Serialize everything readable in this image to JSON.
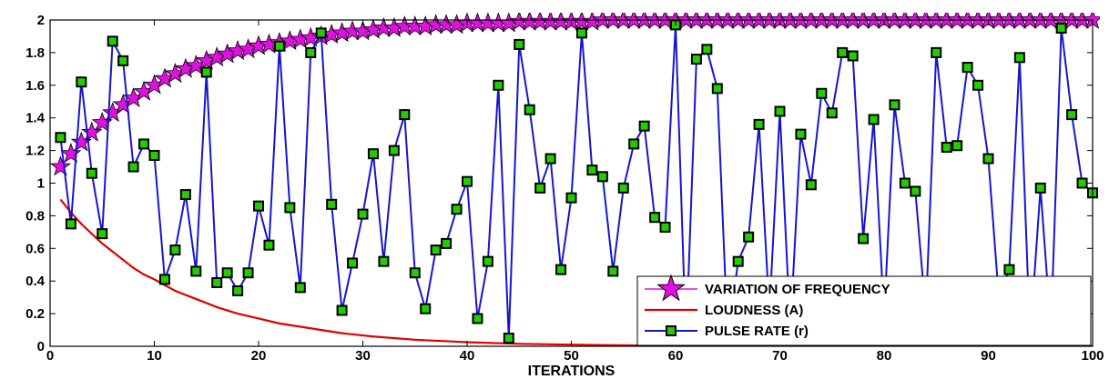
{
  "chart_data": {
    "type": "line",
    "xlabel": "ITERATIONS",
    "ylabel": "",
    "xlim": [
      0,
      100
    ],
    "ylim": [
      0,
      2
    ],
    "xticks": [
      0,
      10,
      20,
      30,
      40,
      50,
      60,
      70,
      80,
      90,
      100
    ],
    "yticks": [
      0,
      0.2,
      0.4,
      0.6,
      0.8,
      1,
      1.2,
      1.4,
      1.6,
      1.8,
      2
    ],
    "grid": false,
    "legend_position": "bottom-right",
    "series": [
      {
        "name": "VARIATION OF FREQUENCY",
        "color": "#e010e0",
        "edge_color": "#000000",
        "marker": "star",
        "line": true,
        "x": [
          1,
          2,
          3,
          4,
          5,
          6,
          7,
          8,
          9,
          10,
          11,
          12,
          13,
          14,
          15,
          16,
          17,
          18,
          19,
          20,
          21,
          22,
          23,
          24,
          25,
          26,
          27,
          28,
          29,
          30,
          31,
          32,
          33,
          34,
          35,
          36,
          37,
          38,
          39,
          40,
          41,
          42,
          43,
          44,
          45,
          46,
          47,
          48,
          49,
          50,
          51,
          52,
          53,
          54,
          55,
          56,
          57,
          58,
          59,
          60,
          61,
          62,
          63,
          64,
          65,
          66,
          67,
          68,
          69,
          70,
          71,
          72,
          73,
          74,
          75,
          76,
          77,
          78,
          79,
          80,
          81,
          82,
          83,
          84,
          85,
          86,
          87,
          88,
          89,
          90,
          91,
          92,
          93,
          94,
          95,
          96,
          97,
          98,
          99,
          100
        ],
        "values": [
          1.1,
          1.18,
          1.25,
          1.31,
          1.37,
          1.43,
          1.48,
          1.52,
          1.56,
          1.6,
          1.64,
          1.67,
          1.7,
          1.72,
          1.75,
          1.77,
          1.79,
          1.81,
          1.82,
          1.84,
          1.85,
          1.86,
          1.87,
          1.88,
          1.89,
          1.9,
          1.91,
          1.92,
          1.93,
          1.93,
          1.94,
          1.95,
          1.95,
          1.96,
          1.96,
          1.96,
          1.97,
          1.97,
          1.97,
          1.98,
          1.98,
          1.98,
          1.98,
          1.98,
          1.99,
          1.99,
          1.99,
          1.99,
          1.99,
          1.99,
          1.99,
          1.99,
          2.0,
          2.0,
          2.0,
          2.0,
          2.0,
          2.0,
          2.0,
          2.0,
          2.0,
          2.0,
          2.0,
          2.0,
          2.0,
          2.0,
          2.0,
          2.0,
          2.0,
          2.0,
          2.0,
          2.0,
          2.0,
          2.0,
          2.0,
          2.0,
          2.0,
          2.0,
          2.0,
          2.0,
          2.0,
          2.0,
          2.0,
          2.0,
          2.0,
          2.0,
          2.0,
          2.0,
          2.0,
          2.0,
          2.0,
          2.0,
          2.0,
          2.0,
          2.0,
          2.0,
          2.0,
          2.0,
          2.0,
          2.0
        ]
      },
      {
        "name": "LOUDNESS (A)",
        "color": "#e00000",
        "marker": "none",
        "line": true,
        "x": [
          1,
          2,
          3,
          4,
          5,
          6,
          7,
          8,
          9,
          10,
          12,
          14,
          16,
          18,
          20,
          22,
          25,
          28,
          31,
          35,
          40,
          45,
          50,
          55,
          60,
          65,
          70,
          75,
          80,
          85,
          90,
          95,
          100
        ],
        "values": [
          0.9,
          0.82,
          0.75,
          0.69,
          0.63,
          0.58,
          0.53,
          0.48,
          0.44,
          0.41,
          0.34,
          0.29,
          0.24,
          0.2,
          0.17,
          0.14,
          0.11,
          0.08,
          0.06,
          0.04,
          0.025,
          0.015,
          0.01,
          0.006,
          0.004,
          0.003,
          0.002,
          0.001,
          0.001,
          0.0,
          0.0,
          0.0,
          0.0
        ]
      },
      {
        "name": "PULSE RATE (r)",
        "color": "#1515d0",
        "marker": "square",
        "marker_fill": "#22cc00",
        "marker_edge": "#000000",
        "line": true,
        "x": [
          1,
          2,
          3,
          4,
          5,
          6,
          7,
          8,
          9,
          10,
          11,
          12,
          13,
          14,
          15,
          16,
          17,
          18,
          19,
          20,
          21,
          22,
          23,
          24,
          25,
          26,
          27,
          28,
          29,
          30,
          31,
          32,
          33,
          34,
          35,
          36,
          37,
          38,
          39,
          40,
          41,
          42,
          43,
          44,
          45,
          46,
          47,
          48,
          49,
          50,
          51,
          52,
          53,
          54,
          55,
          56,
          57,
          58,
          59,
          60,
          61,
          62,
          63,
          64,
          65,
          66,
          67,
          68,
          69,
          70,
          71,
          72,
          73,
          74,
          75,
          76,
          77,
          78,
          79,
          80,
          81,
          82,
          83,
          84,
          85,
          86,
          87,
          88,
          89,
          90,
          91,
          92,
          93,
          94,
          95,
          96,
          97,
          98,
          99,
          100
        ],
        "values": [
          1.28,
          0.75,
          1.62,
          1.06,
          0.69,
          1.87,
          1.75,
          1.1,
          1.24,
          1.17,
          0.41,
          0.59,
          0.93,
          0.46,
          1.68,
          0.39,
          0.45,
          0.34,
          0.45,
          0.86,
          0.62,
          1.84,
          0.85,
          0.36,
          1.8,
          1.92,
          0.87,
          0.22,
          0.51,
          0.81,
          1.18,
          0.52,
          1.2,
          1.42,
          0.45,
          0.23,
          0.59,
          0.63,
          0.84,
          1.01,
          0.17,
          0.52,
          1.6,
          0.05,
          1.85,
          1.45,
          0.97,
          1.15,
          0.47,
          0.91,
          1.92,
          1.08,
          1.04,
          0.46,
          0.97,
          1.24,
          1.35,
          0.79,
          0.73,
          1.97,
          0.02,
          1.76,
          1.82,
          1.58,
          0.05,
          0.52,
          0.67,
          1.36,
          0.21,
          1.44,
          0.1,
          1.3,
          0.99,
          1.55,
          1.43,
          1.8,
          1.78,
          0.66,
          1.39,
          0.18,
          1.48,
          1.0,
          0.95,
          0.2,
          1.8,
          1.22,
          1.23,
          1.71,
          1.6,
          1.15,
          0.3,
          0.47,
          1.77,
          0.05,
          0.97,
          0.1,
          1.95,
          1.42,
          1.0,
          0.94
        ]
      }
    ]
  }
}
